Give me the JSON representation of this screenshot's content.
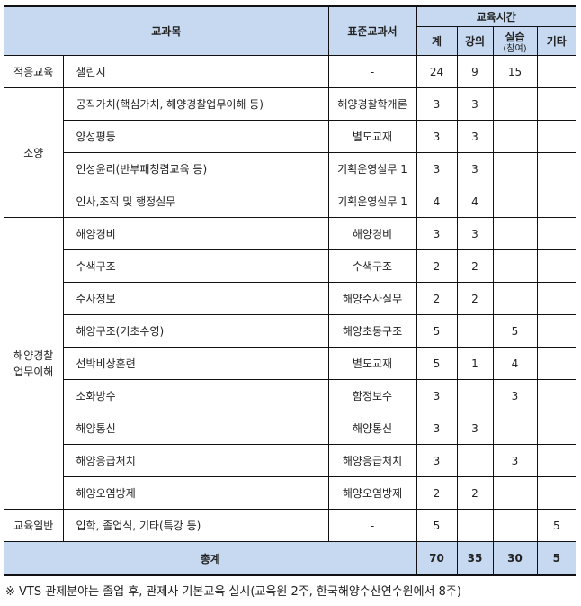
{
  "header": {
    "subject": "교과목",
    "textbook": "표준교과서",
    "hours": "교육시간",
    "total": "계",
    "lecture": "강의",
    "practice": "실습",
    "practice_sub": "(참여)",
    "other": "기타"
  },
  "groups": [
    {
      "category": "적응교육",
      "rows": [
        {
          "subject": "챌린지",
          "textbook": "-",
          "total": "24",
          "lecture": "9",
          "practice": "15",
          "other": ""
        }
      ]
    },
    {
      "category": "소양",
      "rows": [
        {
          "subject": "공직가치(핵심가치, 해양경찰업무이해 등)",
          "textbook": "해양경찰학개론",
          "total": "3",
          "lecture": "3",
          "practice": "",
          "other": ""
        },
        {
          "subject": "양성평등",
          "textbook": "별도교재",
          "total": "3",
          "lecture": "3",
          "practice": "",
          "other": ""
        },
        {
          "subject": "인성윤리(반부패청렴교육 등)",
          "textbook": "기획운영실무 1",
          "total": "3",
          "lecture": "3",
          "practice": "",
          "other": ""
        },
        {
          "subject": "인사,조직 및  행정실무",
          "textbook": "기획운영실무 1",
          "total": "4",
          "lecture": "4",
          "practice": "",
          "other": ""
        }
      ]
    },
    {
      "category": "해양경찰 업무이해",
      "rows": [
        {
          "subject": "해양경비",
          "textbook": "해양경비",
          "total": "3",
          "lecture": "3",
          "practice": "",
          "other": ""
        },
        {
          "subject": "수색구조",
          "textbook": "수색구조",
          "total": "2",
          "lecture": "2",
          "practice": "",
          "other": ""
        },
        {
          "subject": "수사정보",
          "textbook": "해양수사실무",
          "total": "2",
          "lecture": "2",
          "practice": "",
          "other": ""
        },
        {
          "subject": "해양구조(기초수영)",
          "textbook": "해양초동구조",
          "total": "5",
          "lecture": "",
          "practice": "5",
          "other": ""
        },
        {
          "subject": "선박비상훈련",
          "textbook": "별도교재",
          "total": "5",
          "lecture": "1",
          "practice": "4",
          "other": ""
        },
        {
          "subject": "소화방수",
          "textbook": "함정보수",
          "total": "3",
          "lecture": "",
          "practice": "3",
          "other": ""
        },
        {
          "subject": "해양통신",
          "textbook": "해양통신",
          "total": "3",
          "lecture": "3",
          "practice": "",
          "other": ""
        },
        {
          "subject": "해양응급처치",
          "textbook": "해양응급처치",
          "total": "3",
          "lecture": "",
          "practice": "3",
          "other": ""
        },
        {
          "subject": "해양오염방제",
          "textbook": "해양오염방제",
          "total": "2",
          "lecture": "2",
          "practice": "",
          "other": ""
        }
      ]
    },
    {
      "category": "교육일반",
      "rows": [
        {
          "subject": "입학, 졸업식, 기타(특강 등)",
          "textbook": "-",
          "total": "5",
          "lecture": "",
          "practice": "",
          "other": "5"
        }
      ]
    }
  ],
  "totals": {
    "label": "총계",
    "total": "70",
    "lecture": "35",
    "practice": "30",
    "other": "5"
  },
  "note": "※ VTS 관제분야는 졸업 후, 관제사 기본교육 실시(교육원 2주, 한국해양수산연수원에서 8주)",
  "colors": {
    "header_bg": "#c6d9f1"
  }
}
